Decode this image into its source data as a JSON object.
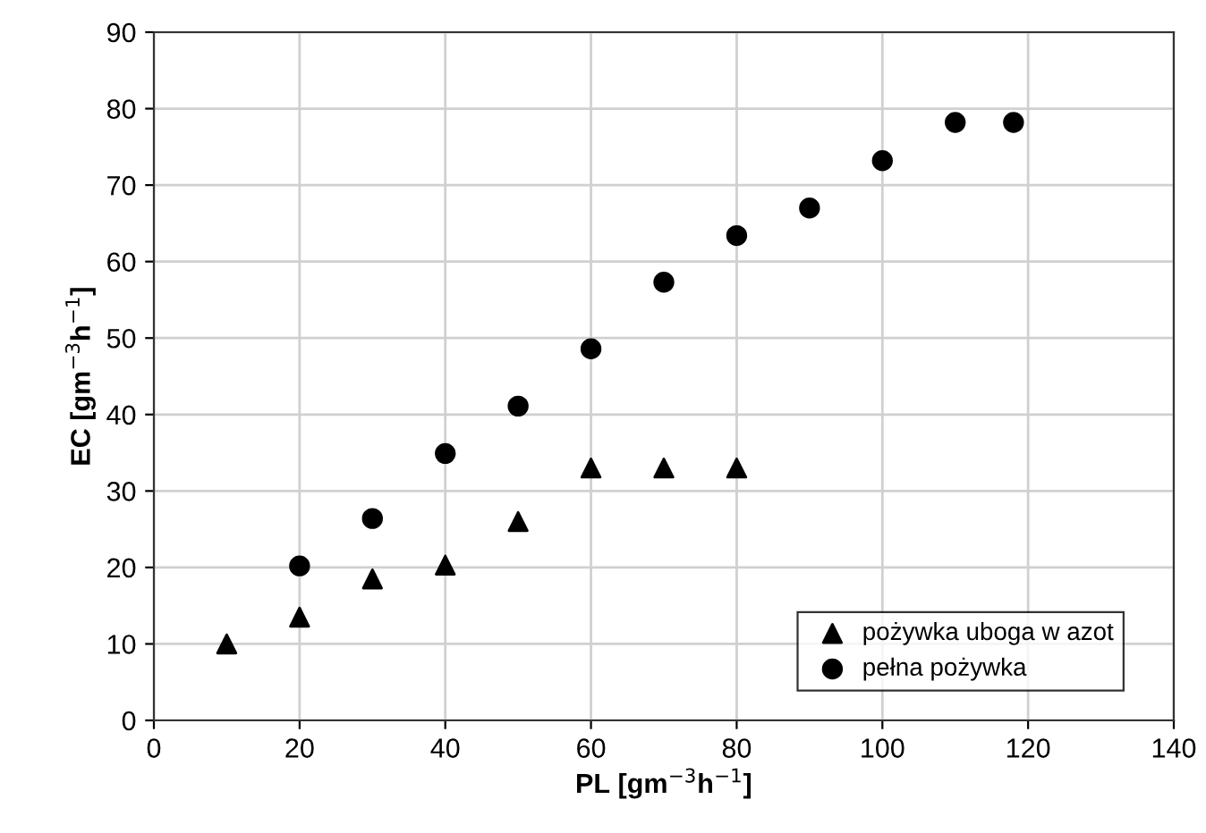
{
  "chart_data": {
    "type": "scatter",
    "xlabel": "PL [gm$^{−3}$h$^{−1}$]",
    "ylabel": "EC [gm$^{−3}$h$^{−1}$]",
    "series": [
      {
        "name": "pożywka uboga w azot",
        "color": "#000000",
        "marker": "triangle",
        "x": [
          10,
          20,
          30,
          40,
          50,
          60,
          70,
          80
        ],
        "values": [
          10,
          13.5,
          18.5,
          20.3,
          26,
          33,
          33,
          33
        ]
      },
      {
        "name": "pełna pożywka",
        "color": "#000000",
        "marker": "circle",
        "x": [
          20,
          30,
          40,
          50,
          60,
          70,
          80,
          90,
          100,
          110,
          118
        ],
        "values": [
          20.2,
          26.4,
          34.9,
          41.1,
          48.6,
          57.3,
          63.4,
          67,
          73.2,
          78.2,
          78.2
        ]
      }
    ],
    "xlim": [
      0,
      140
    ],
    "xticks": [
      0,
      20,
      40,
      60,
      80,
      100,
      120,
      140
    ],
    "ylim": [
      0,
      90
    ],
    "yticks": [
      0,
      10,
      20,
      30,
      40,
      50,
      60,
      70,
      80,
      90
    ],
    "grid": true,
    "legend": "bottom right"
  }
}
